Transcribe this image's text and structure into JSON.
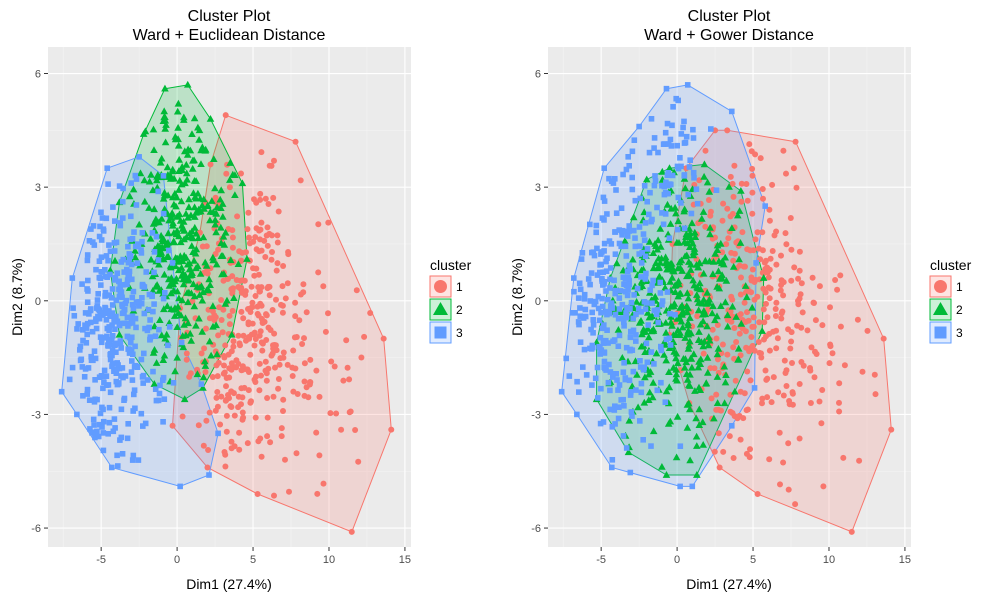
{
  "chart_data": [
    {
      "type": "scatter",
      "title": "Cluster Plot",
      "subtitle": "Ward + Euclidean Distance",
      "xlabel": "Dim1 (27.4%)",
      "ylabel": "Dim2 (8.7%)",
      "xlim": [
        -8.5,
        15.4
      ],
      "ylim": [
        -6.5,
        6.7
      ],
      "xticks": [
        -5,
        0,
        5,
        10,
        15
      ],
      "yticks": [
        -6,
        -3,
        0,
        3,
        6
      ],
      "grid": true,
      "legend": {
        "title": "cluster",
        "position": "right",
        "entries": [
          "1",
          "2",
          "3"
        ]
      },
      "series": [
        {
          "name": "1",
          "color": "#F8766D",
          "marker": "circle",
          "hull": [
            [
              3.2,
              4.9
            ],
            [
              7.8,
              4.2
            ],
            [
              13.6,
              -1.0
            ],
            [
              14.1,
              -3.4
            ],
            [
              11.5,
              -6.1
            ],
            [
              5.3,
              -5.1
            ],
            [
              2.0,
              -4.4
            ],
            [
              -0.3,
              -3.3
            ],
            [
              0.2,
              -0.2
            ],
            [
              1.5,
              1.8
            ],
            [
              2.2,
              3.6
            ]
          ],
          "clusters": [
            {
              "cx": 4.2,
              "cy": -0.4,
              "sx": 2.2,
              "sy": 1.9,
              "n": 340
            },
            {
              "cx": 9.5,
              "cy": -1.8,
              "sx": 2.5,
              "sy": 1.5,
              "n": 40
            }
          ]
        },
        {
          "name": "2",
          "color": "#00BA38",
          "marker": "triangle",
          "hull": [
            [
              -0.8,
              5.6
            ],
            [
              0.7,
              5.7
            ],
            [
              2.2,
              4.8
            ],
            [
              4.3,
              3.1
            ],
            [
              4.6,
              1.1
            ],
            [
              3.6,
              -0.9
            ],
            [
              1.7,
              -2.3
            ],
            [
              0.5,
              -2.6
            ],
            [
              -1.5,
              -2.2
            ],
            [
              -3.8,
              -0.9
            ],
            [
              -4.4,
              0.8
            ],
            [
              -3.8,
              2.6
            ],
            [
              -2.2,
              4.4
            ]
          ],
          "clusters": [
            {
              "cx": 0.3,
              "cy": 1.6,
              "sx": 1.6,
              "sy": 1.6,
              "n": 360
            }
          ]
        },
        {
          "name": "3",
          "color": "#619CFF",
          "marker": "square",
          "hull": [
            [
              -4.6,
              3.5
            ],
            [
              -2.5,
              3.8
            ],
            [
              -0.9,
              3.3
            ],
            [
              -0.3,
              1.0
            ],
            [
              0.3,
              -1.1
            ],
            [
              1.6,
              -2.2
            ],
            [
              2.7,
              -3.5
            ],
            [
              2.1,
              -4.6
            ],
            [
              0.2,
              -4.9
            ],
            [
              -4.3,
              -4.4
            ],
            [
              -6.6,
              -3.0
            ],
            [
              -7.6,
              -2.4
            ],
            [
              -6.9,
              0.6
            ]
          ],
          "clusters": [
            {
              "cx": -4.0,
              "cy": -0.6,
              "sx": 1.6,
              "sy": 1.9,
              "n": 360
            }
          ]
        }
      ]
    },
    {
      "type": "scatter",
      "title": "Cluster Plot",
      "subtitle": "Ward + Gower Distance",
      "xlabel": "Dim1 (27.4%)",
      "ylabel": "Dim2 (8.7%)",
      "xlim": [
        -8.5,
        15.4
      ],
      "ylim": [
        -6.5,
        6.7
      ],
      "xticks": [
        -5,
        0,
        5,
        10,
        15
      ],
      "yticks": [
        -6,
        -3,
        0,
        3,
        6
      ],
      "grid": true,
      "legend": {
        "title": "cluster",
        "position": "right",
        "entries": [
          "1",
          "2",
          "3"
        ]
      },
      "series": [
        {
          "name": "1",
          "color": "#F8766D",
          "marker": "circle",
          "hull": [
            [
              2.5,
              4.5
            ],
            [
              3.3,
              4.5
            ],
            [
              7.8,
              4.2
            ],
            [
              13.6,
              -1.0
            ],
            [
              14.1,
              -3.4
            ],
            [
              11.5,
              -6.1
            ],
            [
              5.3,
              -5.1
            ],
            [
              2.8,
              -4.4
            ],
            [
              0.8,
              -2.7
            ],
            [
              -0.5,
              -0.9
            ],
            [
              -0.3,
              1.5
            ],
            [
              0.6,
              3.5
            ]
          ],
          "clusters": [
            {
              "cx": 4.2,
              "cy": -0.2,
              "sx": 2.3,
              "sy": 1.9,
              "n": 300
            },
            {
              "cx": 9.5,
              "cy": -1.8,
              "sx": 2.5,
              "sy": 1.5,
              "n": 40
            }
          ]
        },
        {
          "name": "2",
          "color": "#00BA38",
          "marker": "triangle",
          "hull": [
            [
              -0.5,
              3.5
            ],
            [
              1.8,
              3.6
            ],
            [
              4.2,
              2.9
            ],
            [
              5.7,
              0.6
            ],
            [
              5.6,
              -0.8
            ],
            [
              3.8,
              -2.4
            ],
            [
              1.3,
              -4.6
            ],
            [
              -0.7,
              -4.6
            ],
            [
              -3.2,
              -4.0
            ],
            [
              -5.3,
              -2.6
            ],
            [
              -5.3,
              -1.1
            ],
            [
              -4.4,
              0.6
            ],
            [
              -2.0,
              3.2
            ]
          ],
          "clusters": [
            {
              "cx": -0.3,
              "cy": 0.2,
              "sx": 2.1,
              "sy": 1.7,
              "n": 420
            }
          ]
        },
        {
          "name": "3",
          "color": "#619CFF",
          "marker": "square",
          "hull": [
            [
              -0.7,
              5.6
            ],
            [
              0.7,
              5.7
            ],
            [
              3.6,
              5.0
            ],
            [
              5.8,
              2.5
            ],
            [
              5.2,
              1.0
            ],
            [
              5.1,
              -2.3
            ],
            [
              3.6,
              -3.3
            ],
            [
              1.0,
              -4.9
            ],
            [
              0.2,
              -4.9
            ],
            [
              -4.3,
              -4.4
            ],
            [
              -6.6,
              -3.0
            ],
            [
              -7.6,
              -2.4
            ],
            [
              -6.8,
              0.6
            ],
            [
              -4.8,
              3.5
            ],
            [
              -2.5,
              4.6
            ]
          ],
          "clusters": [
            {
              "cx": -4.0,
              "cy": -0.1,
              "sx": 1.7,
              "sy": 2.0,
              "n": 300
            },
            {
              "cx": 0.2,
              "cy": 3.6,
              "sx": 1.2,
              "sy": 0.9,
              "n": 60
            }
          ]
        }
      ]
    }
  ]
}
